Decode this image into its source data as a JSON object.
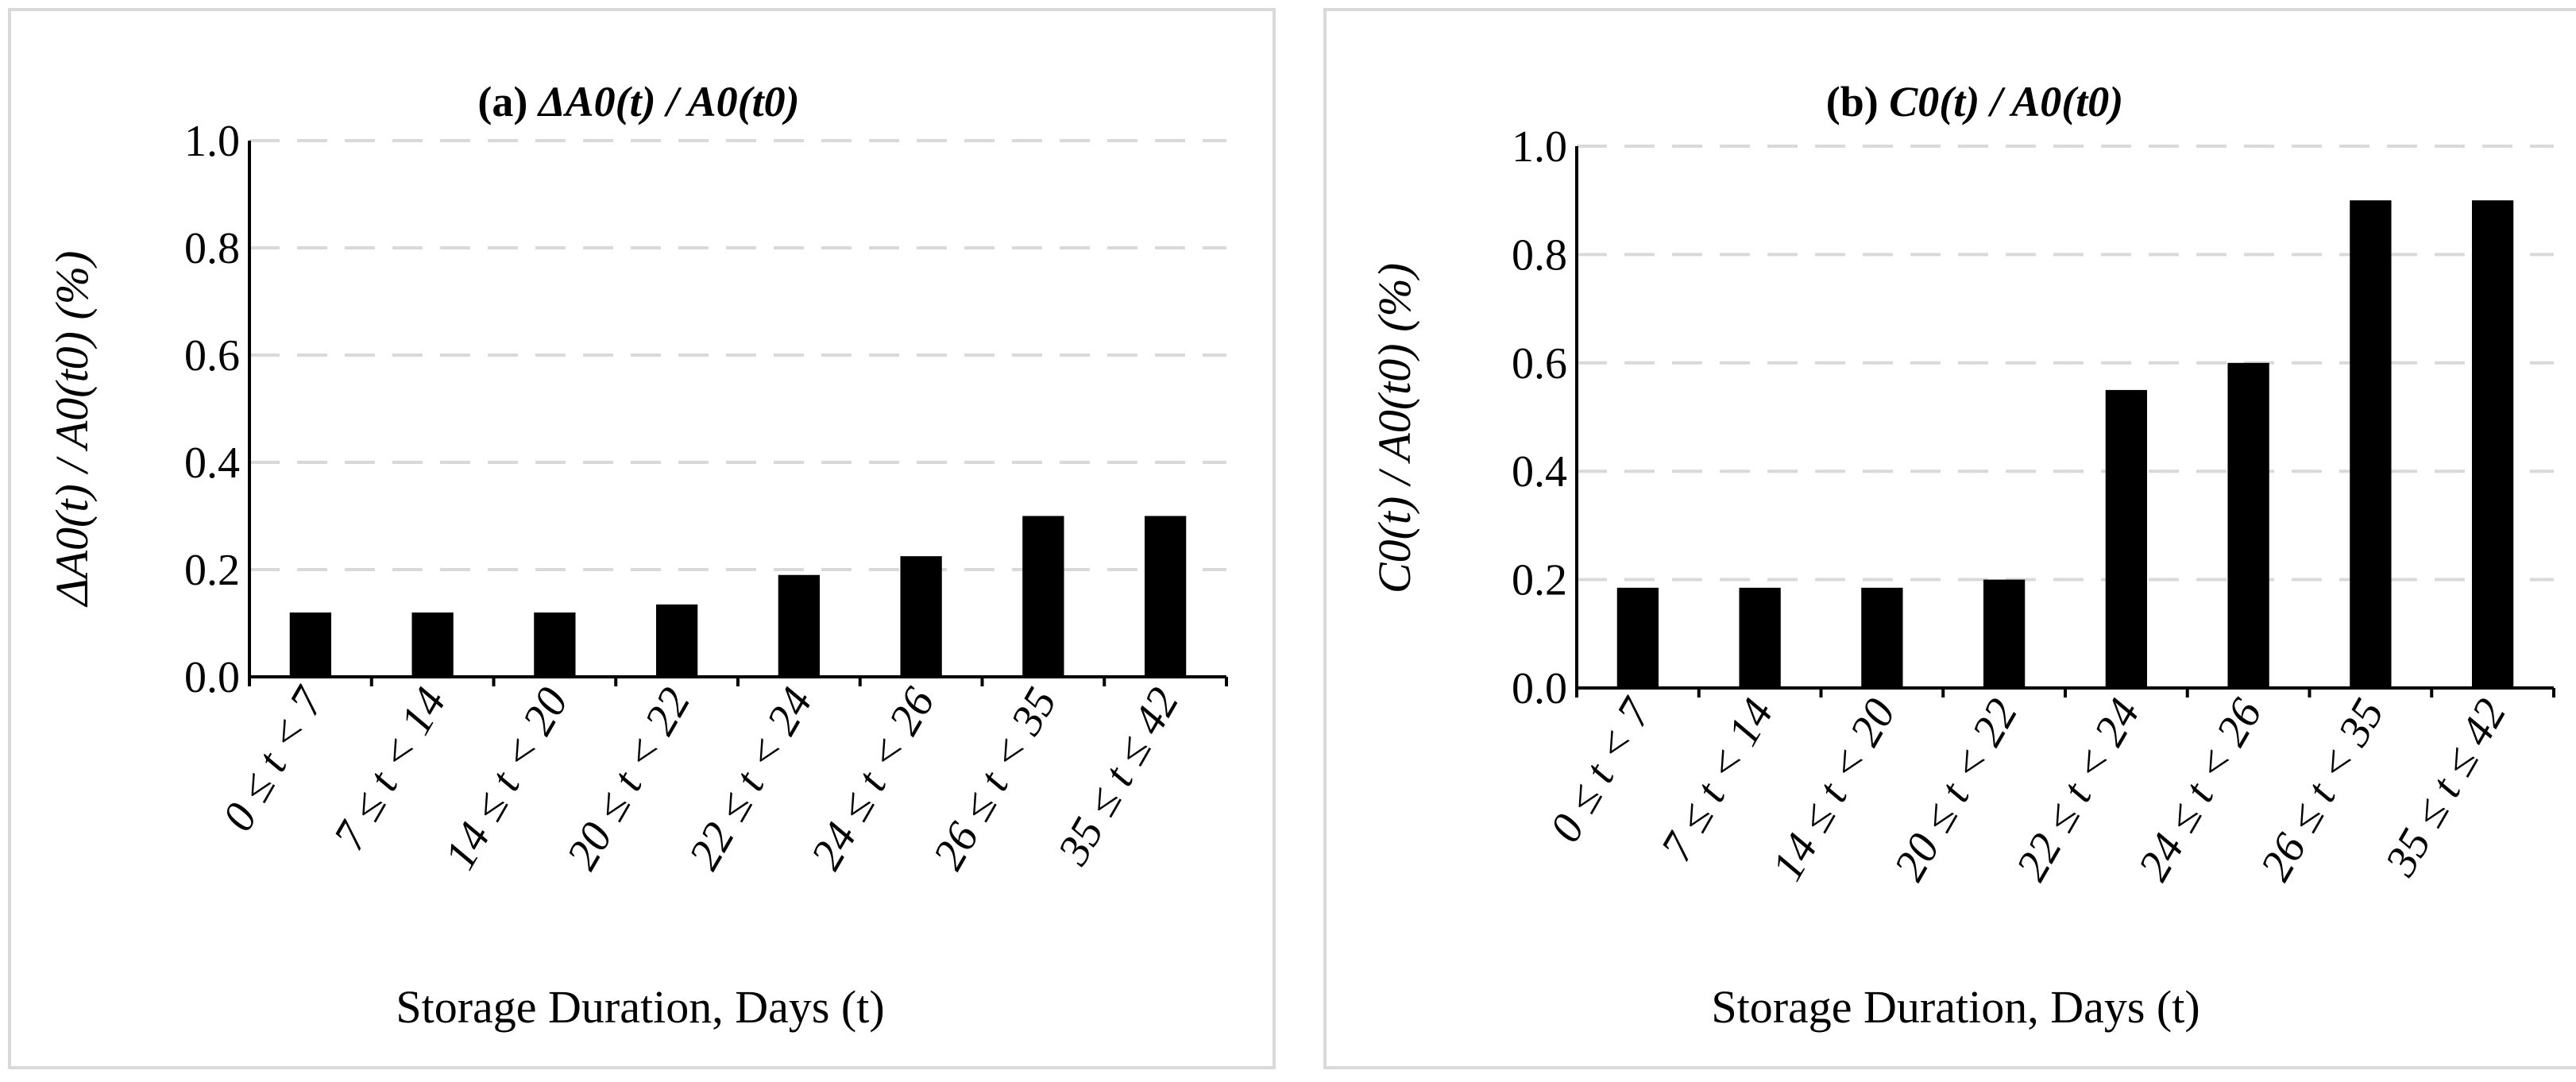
{
  "chart_data": [
    {
      "type": "bar",
      "title_prefix": "(a) ",
      "title": "ΔA0(t) / A0(t0)",
      "ylabel": "ΔA0(t) / A0(t0) (%)",
      "xlabel": "Storage Duration, Days (t)",
      "categories": [
        "0 ≤ t < 7",
        "7 ≤ t < 14",
        "14 ≤ t < 20",
        "20 ≤ t < 22",
        "22 ≤ t < 24",
        "24 ≤ t < 26",
        "26 ≤ t < 35",
        "35 ≤ t ≤ 42"
      ],
      "values": [
        0.12,
        0.12,
        0.12,
        0.135,
        0.19,
        0.225,
        0.3,
        0.3
      ],
      "ylim": [
        0.0,
        1.0
      ],
      "yticks": [
        "0.0",
        "0.2",
        "0.4",
        "0.6",
        "0.8",
        "1.0"
      ],
      "grid": true,
      "bar_color": "#000000",
      "grid_color": "#d9d9d9"
    },
    {
      "type": "bar",
      "title_prefix": "(b) ",
      "title": "C0(t) / A0(t0)",
      "ylabel": "C0(t) / A0(t0) (%)",
      "xlabel": "Storage Duration, Days (t)",
      "categories": [
        "0 ≤ t < 7",
        "7 ≤ t < 14",
        "14 ≤ t < 20",
        "20 ≤ t < 22",
        "22 ≤ t < 24",
        "24 ≤ t < 26",
        "26 ≤ t < 35",
        "35 ≤ t ≤ 42"
      ],
      "values": [
        0.185,
        0.185,
        0.185,
        0.2,
        0.55,
        0.6,
        0.9,
        0.9
      ],
      "ylim": [
        0.0,
        1.0
      ],
      "yticks": [
        "0.0",
        "0.2",
        "0.4",
        "0.6",
        "0.8",
        "1.0"
      ],
      "grid": true,
      "bar_color": "#000000",
      "grid_color": "#d9d9d9"
    }
  ]
}
